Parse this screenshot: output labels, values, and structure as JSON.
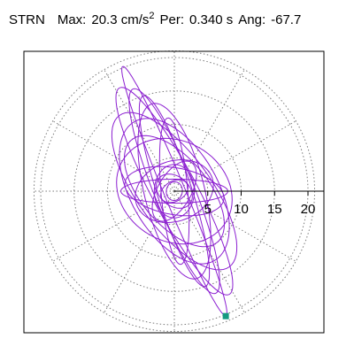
{
  "header": {
    "station": "STRN",
    "max_label": "Max:",
    "max_value": "20.3 cm/s",
    "max_exp": "2",
    "per_label": "Per:",
    "per_value": "0.340 s",
    "ang_label": "Ang:",
    "ang_value": "-67.7"
  },
  "chart_data": {
    "type": "polar-trajectory",
    "r_ticks": [
      "5",
      "10",
      "15",
      "20"
    ],
    "r_tick_values": [
      5,
      10,
      15,
      20
    ],
    "r_max": 21,
    "ring_values": [
      5,
      10,
      15,
      20
    ],
    "spoke_angles_deg": [
      0,
      30,
      60,
      90,
      120,
      150,
      180,
      210,
      240,
      270,
      300,
      330
    ],
    "grid": "dotted",
    "max_amplitude": 20.3,
    "angle_deg": -67.7,
    "line_color": "#8c1fd1",
    "marker_color": "#159a80",
    "end_marker": {
      "x": 7.7,
      "y": -18.7
    },
    "orbits": [
      {
        "a": 16.5,
        "b": 3.0,
        "theta": 112
      },
      {
        "a": 15.0,
        "b": 2.6,
        "theta": 108
      },
      {
        "a": 13.5,
        "b": 4.5,
        "theta": 104
      },
      {
        "a": 12.0,
        "b": 6.5,
        "theta": 120
      },
      {
        "a": 10.0,
        "b": 5.0,
        "theta": 130
      },
      {
        "a": 17.5,
        "b": 3.4,
        "theta": 118
      },
      {
        "a": 20.2,
        "b": 1.6,
        "theta": 112.5
      },
      {
        "a": 9.0,
        "b": 7.5,
        "theta": 150
      },
      {
        "a": 7.5,
        "b": 3.5,
        "theta": 170
      },
      {
        "a": 6.0,
        "b": 4.5,
        "theta": 20
      },
      {
        "a": 5.0,
        "b": 2.5,
        "theta": 60
      },
      {
        "a": 4.0,
        "b": 3.0,
        "theta": 90
      },
      {
        "a": 3.0,
        "b": 2.2,
        "theta": 140
      },
      {
        "a": 2.2,
        "b": 1.5,
        "theta": 30
      },
      {
        "a": 1.4,
        "b": 1.2,
        "theta": 80
      },
      {
        "a": 11.0,
        "b": 2.0,
        "theta": 95
      },
      {
        "a": 8.0,
        "b": 1.8,
        "theta": 0
      },
      {
        "a": 14.0,
        "b": 5.5,
        "theta": 126
      }
    ]
  }
}
